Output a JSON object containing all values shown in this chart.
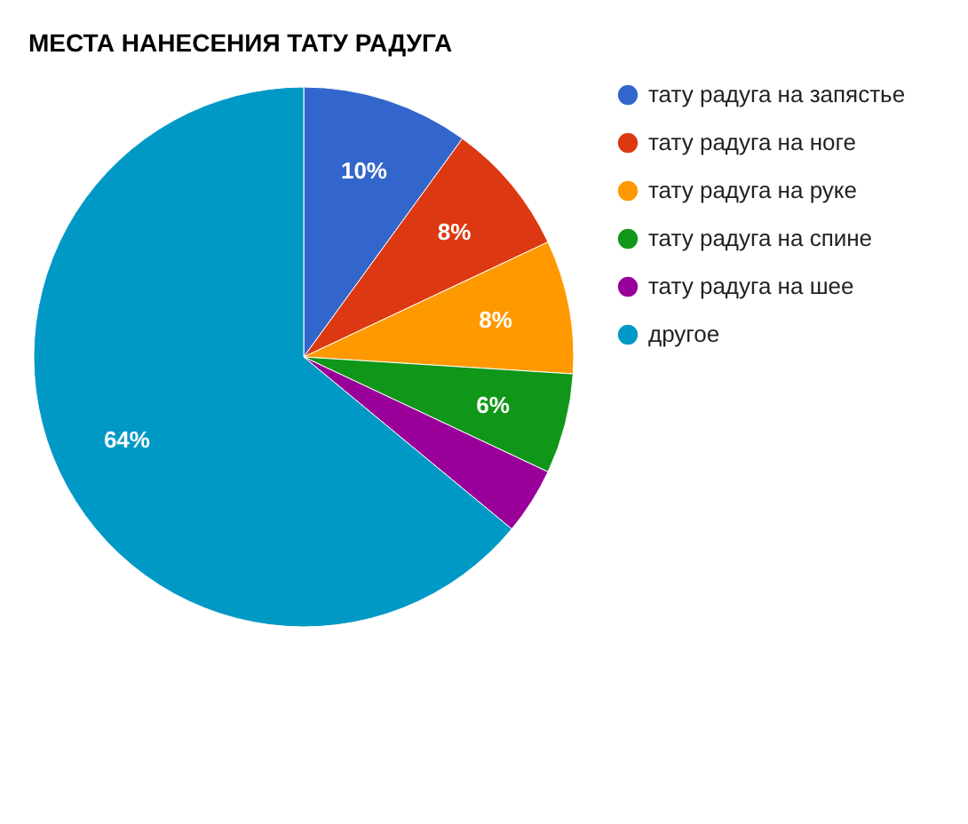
{
  "chart_data": {
    "type": "pie",
    "title": "МЕСТА НАНЕСЕНИЯ ТАТУ РАДУГА",
    "categories": [
      "тату радуга на запястье",
      "тату радуга на ноге",
      "тату радуга на руке",
      "тату радуга на спине",
      "тату радуга на шее",
      "другое"
    ],
    "values": [
      10,
      8,
      8,
      6,
      4,
      64
    ],
    "colors": [
      "#3366cc",
      "#dc3912",
      "#ff9900",
      "#109618",
      "#990099",
      "#0099c6"
    ],
    "value_labels": [
      "10%",
      "8%",
      "8%",
      "6%",
      null,
      "64%"
    ],
    "legend": "top right"
  }
}
